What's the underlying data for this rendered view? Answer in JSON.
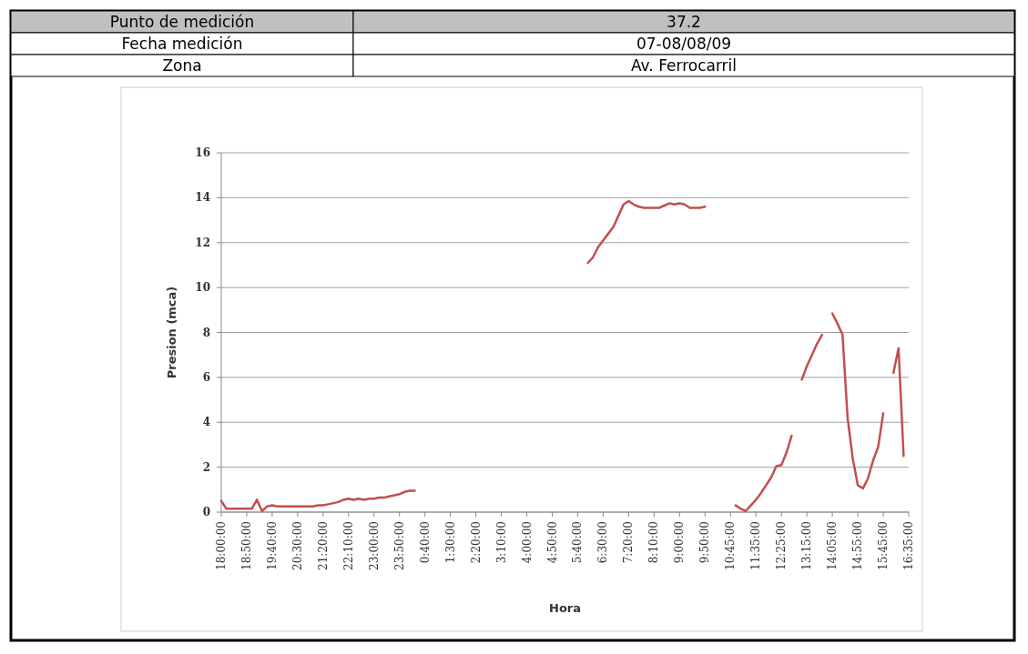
{
  "chart_data": {
    "type": "line",
    "annotations": [
      "Punto de medición",
      "37.2",
      "Fecha medición",
      "07-08/08/09",
      "Zona",
      "Av. Ferrocarril"
    ],
    "xlabel": "Hora",
    "ylabel": "Presion (mca)",
    "categories": [
      "18:00:00",
      null,
      null,
      null,
      null,
      "18:50:00",
      null,
      null,
      null,
      null,
      "19:40:00",
      null,
      null,
      null,
      null,
      "20:30:00",
      null,
      null,
      null,
      null,
      "21:20:00",
      null,
      null,
      null,
      null,
      "22:10:00",
      null,
      null,
      null,
      null,
      "23:00:00",
      null,
      null,
      null,
      null,
      "23:50:00",
      null,
      null,
      null,
      null,
      "0:40:00",
      null,
      null,
      null,
      null,
      "1:30:00",
      null,
      null,
      null,
      null,
      "2:20:00",
      null,
      null,
      null,
      null,
      "3:10:00",
      null,
      null,
      null,
      null,
      "4:00:00",
      null,
      null,
      null,
      null,
      "4:50:00",
      null,
      null,
      null,
      null,
      "5:40:00",
      null,
      null,
      null,
      null,
      "6:30:00",
      null,
      null,
      null,
      null,
      "7:20:00",
      null,
      null,
      null,
      null,
      "8:10:00",
      null,
      null,
      null,
      null,
      "9:00:00",
      null,
      null,
      null,
      null,
      "9:50:00",
      null,
      null,
      null,
      null,
      "10:45:00",
      null,
      null,
      null,
      null,
      "11:35:00",
      null,
      null,
      null,
      null,
      "12:25:00",
      null,
      null,
      null,
      null,
      "13:15:00",
      null,
      null,
      null,
      null,
      "14:05:00",
      null,
      null,
      null,
      null,
      "14:55:00",
      null,
      null,
      null,
      null,
      "15:45:00",
      null,
      null,
      null,
      null,
      "16:35:00"
    ],
    "series": [
      {
        "color": "#c0504d",
        "values": [
          0.5,
          0.15,
          0.15,
          0.15,
          0.15,
          0.15,
          0.15,
          0.55,
          0.05,
          0.25,
          0.3,
          0.25,
          0.25,
          0.25,
          0.25,
          0.25,
          0.25,
          0.25,
          0.25,
          0.3,
          0.3,
          0.35,
          0.4,
          0.45,
          0.55,
          0.6,
          0.55,
          0.6,
          0.55,
          0.6,
          0.6,
          0.65,
          0.65,
          0.7,
          0.75,
          0.8,
          0.9,
          0.95,
          0.95,
          null,
          null,
          null,
          null,
          null,
          null,
          null,
          null,
          null,
          null,
          null,
          null,
          null,
          null,
          null,
          null,
          null,
          null,
          null,
          null,
          null,
          null,
          null,
          null,
          null,
          null,
          null,
          null,
          null,
          null,
          null,
          null,
          null,
          11.1,
          11.35,
          11.8,
          12.1,
          12.4,
          12.7,
          13.2,
          13.7,
          13.85,
          13.7,
          13.6,
          13.55,
          13.55,
          13.55,
          13.55,
          13.65,
          13.75,
          13.7,
          13.75,
          13.7,
          13.55,
          13.55,
          13.55,
          13.6,
          null,
          null,
          null,
          null,
          null,
          0.3,
          0.15,
          0.05,
          0.3,
          0.55,
          0.85,
          1.2,
          1.55,
          2.05,
          2.1,
          2.65,
          3.4,
          null,
          5.9,
          6.5,
          7.0,
          7.5,
          7.9,
          null,
          8.85,
          8.4,
          7.9,
          4.2,
          2.4,
          1.2,
          1.05,
          1.5,
          2.3,
          2.9,
          4.4,
          null,
          6.2,
          7.3,
          2.5,
          null
        ]
      }
    ],
    "ylim": [
      0,
      16
    ],
    "yticks": [
      0,
      2,
      4,
      6,
      8,
      10,
      12,
      14,
      16
    ],
    "grid": "y",
    "line_style": "solid"
  }
}
